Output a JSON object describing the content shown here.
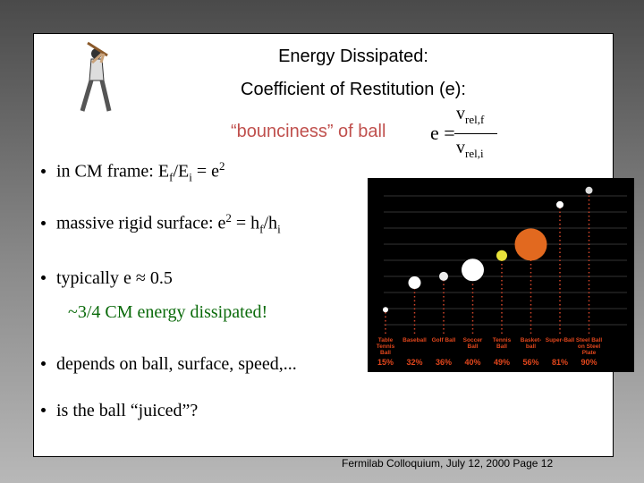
{
  "header": {
    "title": "Energy Dissipated:",
    "subtitle": "Coefficient of Restitution (e):",
    "note": "“bounciness” of ball"
  },
  "formula": {
    "lhs": "e =",
    "num": "v",
    "num_sub": "rel,f",
    "den": "v",
    "den_sub": "rel,i"
  },
  "bullets": [
    [
      "in CM frame:  E",
      "f",
      "/E",
      "i",
      " = e",
      "2"
    ],
    [
      "massive rigid surface: e",
      "2",
      " = h",
      "f",
      "/h",
      "i"
    ],
    [
      "typically e ≈ 0.5"
    ],
    [
      "depends on ball, surface, speed,..."
    ],
    [
      "is the ball “juiced”?"
    ]
  ],
  "bullet_note": "~3/4 CM energy dissipated!",
  "figure": {
    "type": "bar",
    "categories": [
      "Table Tennis Ball",
      "Baseball",
      "Golf Ball",
      "Soccer Ball",
      "Tennis Ball",
      "Basket-ball",
      "Super-Ball",
      "Steel Ball on Steel Plate"
    ],
    "values": [
      15,
      32,
      36,
      40,
      49,
      56,
      81,
      90
    ],
    "value_labels": [
      "15%",
      "32%",
      "36%",
      "40%",
      "49%",
      "56%",
      "81%",
      "90%"
    ]
  },
  "footer": "Fermilab Colloquium, July 12, 2000  Page 12"
}
